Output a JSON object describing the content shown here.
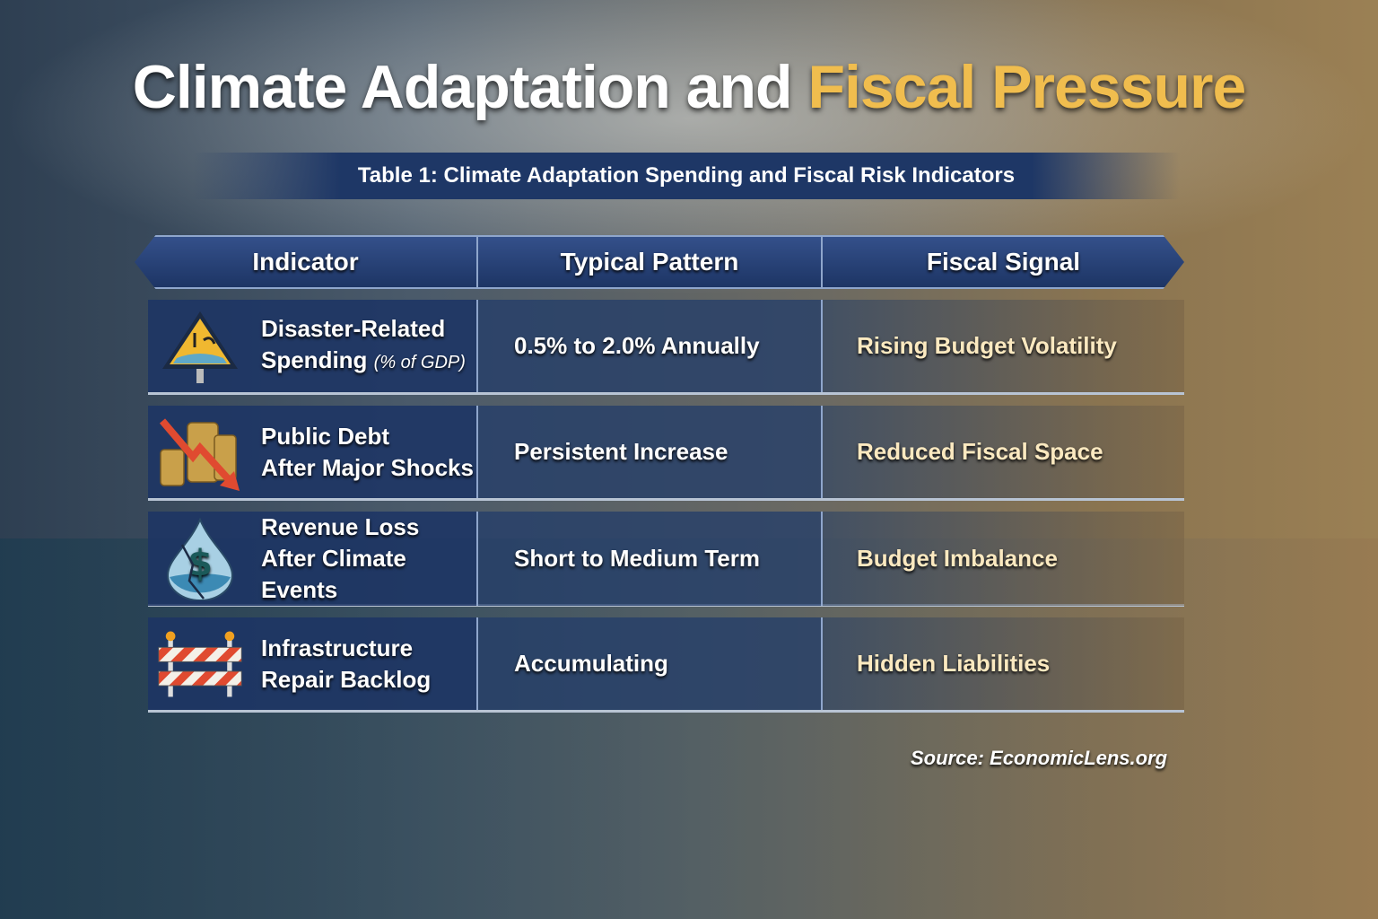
{
  "title": {
    "main": "Climate Adaptation and",
    "accent": "Fiscal Pressure"
  },
  "subtitle": "Table 1: Climate Adaptation Spending and Fiscal Risk Indicators",
  "colors": {
    "accent": "#f0bd4e",
    "header": "#1d3565",
    "cell": "#1c3464"
  },
  "table": {
    "headers": [
      "Indicator",
      "Typical Pattern",
      "Fiscal Signal"
    ],
    "rows": [
      {
        "icon": "flood-warning-sign-icon",
        "indicator_line1": "Disaster-Related",
        "indicator_line2": "Spending",
        "indicator_note": "(% of GDP)",
        "pattern": "0.5% to 2.0% Annually",
        "signal": "Rising Budget Volatility"
      },
      {
        "icon": "coins-falling-arrow-icon",
        "indicator_line1": "Public Debt",
        "indicator_line2": "After Major Shocks",
        "pattern": "Persistent Increase",
        "signal": "Reduced Fiscal Space"
      },
      {
        "icon": "cracked-dollar-drop-icon",
        "indicator_line1": "Revenue Loss",
        "indicator_line2": "After Climate Events",
        "pattern": "Short to Medium Term",
        "signal": "Budget Imbalance"
      },
      {
        "icon": "road-barrier-icon",
        "indicator_line1": "Infrastructure",
        "indicator_line2": "Repair Backlog",
        "pattern": "Accumulating",
        "signal": "Hidden Liabilities"
      }
    ]
  },
  "source": "Source: EconomicLens.org"
}
